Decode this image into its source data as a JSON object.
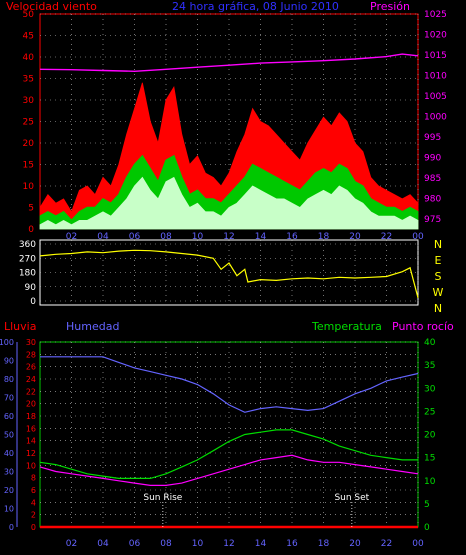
{
  "header": {
    "left_label": "Velocidad viento",
    "center_label": "24 hora gráfica, 08 Junio 2010",
    "right_label": "Presión"
  },
  "bottom_header": {
    "lluvia": "Lluvia",
    "humedad": "Humedad",
    "temperatura": "Temperatura",
    "punto_rocio": "Punto rocío"
  },
  "colors": {
    "background": "#000000",
    "wind_gust": "#ff0000",
    "wind_avg": "#00c800",
    "wind_min": "#c8ffc8",
    "pressure": "#ff00ff",
    "direction": "#ffff00",
    "humidity": "#6464ff",
    "temperature": "#00dc00",
    "dewpoint": "#ff00ff",
    "rain": "#ff0000",
    "axis_left": "#ff0000",
    "axis_right": "#ff00ff",
    "grid": "#c0c0c0",
    "ticks_x": "#6464ff"
  },
  "x_tick_labels": [
    "02",
    "04",
    "06",
    "08",
    "10",
    "12",
    "14",
    "16",
    "18",
    "20",
    "22",
    "00"
  ],
  "chart_data": [
    {
      "type": "line",
      "name": "wind_pressure",
      "ylim_left": [
        0,
        50
      ],
      "left_ticks": [
        "0",
        "5",
        "10",
        "15",
        "20",
        "25",
        "30",
        "35",
        "40",
        "45",
        "50"
      ],
      "ylim_right": [
        972.5,
        1025
      ],
      "right_ticks": [
        "975",
        "980",
        "985",
        "990",
        "995",
        "1000",
        "1005",
        "1010",
        "1015",
        "1020",
        "1025"
      ],
      "series": [
        {
          "name": "",
          "key": "gust",
          "x": [
            0,
            0.5,
            1,
            1.5,
            2,
            2.5,
            3,
            3.5,
            4,
            4.5,
            5,
            5.5,
            6,
            6.5,
            7,
            7.5,
            8,
            8.5,
            9,
            9.5,
            10,
            10.5,
            11,
            11.5,
            12,
            12.5,
            13,
            13.5,
            14,
            14.5,
            15,
            15.5,
            16,
            16.5,
            17,
            17.5,
            18,
            18.5,
            19,
            19.5,
            20,
            20.5,
            21,
            21.5,
            22,
            22.5,
            23,
            23.5,
            24
          ],
          "values": [
            5,
            8,
            6,
            7,
            4,
            9,
            10,
            8,
            12,
            10,
            15,
            22,
            28,
            34,
            25,
            20,
            30,
            33,
            22,
            15,
            17,
            13,
            12,
            10,
            13,
            18,
            22,
            28,
            25,
            24,
            22,
            20,
            18,
            16,
            20,
            23,
            26,
            24,
            27,
            25,
            20,
            18,
            12,
            10,
            9,
            8,
            7,
            8,
            6
          ]
        },
        {
          "name": "",
          "key": "avg",
          "x": [
            0,
            0.5,
            1,
            1.5,
            2,
            2.5,
            3,
            3.5,
            4,
            4.5,
            5,
            5.5,
            6,
            6.5,
            7,
            7.5,
            8,
            8.5,
            9,
            9.5,
            10,
            10.5,
            11,
            11.5,
            12,
            12.5,
            13,
            13.5,
            14,
            14.5,
            15,
            15.5,
            16,
            16.5,
            17,
            17.5,
            18,
            18.5,
            19,
            19.5,
            20,
            20.5,
            21,
            21.5,
            22,
            22.5,
            23,
            23.5,
            24
          ],
          "values": [
            3,
            4,
            3,
            4,
            2,
            4,
            5,
            5,
            7,
            6,
            8,
            12,
            15,
            17,
            14,
            11,
            16,
            17,
            12,
            8,
            9,
            7,
            7,
            6,
            8,
            10,
            12,
            15,
            14,
            13,
            12,
            11,
            10,
            9,
            11,
            13,
            14,
            13,
            15,
            14,
            11,
            10,
            7,
            6,
            5,
            5,
            4,
            5,
            4
          ]
        },
        {
          "name": "",
          "key": "min",
          "x": [
            0,
            0.5,
            1,
            1.5,
            2,
            2.5,
            3,
            3.5,
            4,
            4.5,
            5,
            5.5,
            6,
            6.5,
            7,
            7.5,
            8,
            8.5,
            9,
            9.5,
            10,
            10.5,
            11,
            11.5,
            12,
            12.5,
            13,
            13.5,
            14,
            14.5,
            15,
            15.5,
            16,
            16.5,
            17,
            17.5,
            18,
            18.5,
            19,
            19.5,
            20,
            20.5,
            21,
            21.5,
            22,
            22.5,
            23,
            23.5,
            24
          ],
          "values": [
            1,
            2,
            1,
            2,
            1,
            2,
            2,
            3,
            4,
            3,
            5,
            7,
            10,
            12,
            9,
            7,
            11,
            12,
            8,
            5,
            6,
            4,
            4,
            3,
            5,
            6,
            8,
            10,
            9,
            8,
            7,
            7,
            6,
            5,
            7,
            8,
            9,
            8,
            10,
            9,
            7,
            6,
            4,
            3,
            3,
            3,
            2,
            3,
            2
          ]
        },
        {
          "name": "",
          "key": "pressure",
          "axis": "right",
          "x": [
            0,
            2,
            4,
            6,
            8,
            10,
            12,
            14,
            16,
            18,
            20,
            22,
            23,
            24
          ],
          "values": [
            1011.5,
            1011.4,
            1011.2,
            1011.0,
            1011.5,
            1012.0,
            1012.5,
            1013.0,
            1013.3,
            1013.6,
            1014.0,
            1014.6,
            1015.2,
            1014.8
          ]
        }
      ]
    },
    {
      "type": "line",
      "name": "wind_direction",
      "ylim": [
        0,
        360
      ],
      "left_ticks": [
        "0",
        "90",
        "180",
        "270",
        "360"
      ],
      "right_labels": [
        "N",
        "W",
        "S",
        "E",
        "N"
      ],
      "series": [
        {
          "name": "",
          "key": "direction",
          "x": [
            0,
            0.5,
            1,
            2,
            3,
            4,
            5,
            6,
            7,
            8,
            9,
            10,
            11,
            11.5,
            12,
            12.5,
            13,
            13.2,
            14,
            15,
            16,
            17,
            18,
            19,
            20,
            21,
            22,
            23,
            23.5,
            24
          ],
          "values": [
            285,
            290,
            295,
            300,
            310,
            305,
            315,
            320,
            318,
            310,
            300,
            290,
            270,
            200,
            240,
            160,
            200,
            120,
            135,
            130,
            140,
            145,
            140,
            150,
            145,
            150,
            155,
            185,
            210,
            20
          ]
        }
      ]
    },
    {
      "type": "line",
      "name": "humidity_temperature",
      "ylim_rain": [
        0,
        30
      ],
      "rain_ticks": [
        "0",
        "2",
        "4",
        "6",
        "8",
        "10",
        "12",
        "14",
        "16",
        "18",
        "20",
        "22",
        "24",
        "26",
        "28",
        "30"
      ],
      "ylim_humidity": [
        0,
        100
      ],
      "humidity_ticks": [
        "0",
        "10",
        "20",
        "30",
        "40",
        "50",
        "60",
        "70",
        "80",
        "90",
        "100"
      ],
      "ylim_temp": [
        0,
        40
      ],
      "temp_ticks": [
        "0",
        "5",
        "10",
        "15",
        "20",
        "25",
        "30",
        "35",
        "40"
      ],
      "sun_rise_label": "Sun Rise",
      "sun_set_label": "Sun Set",
      "sun_rise_x": 7.8,
      "sun_set_x": 19.8,
      "series": [
        {
          "name": "",
          "key": "humidity",
          "x": [
            0,
            1,
            2,
            3,
            4,
            5,
            6,
            7,
            8,
            9,
            10,
            11,
            12,
            13,
            14,
            15,
            16,
            17,
            18,
            19,
            20,
            21,
            22,
            23,
            24
          ],
          "values": [
            92,
            92,
            92,
            92,
            92,
            89,
            86,
            84,
            82,
            80,
            77,
            72,
            66,
            62,
            64,
            65,
            64,
            63,
            64,
            68,
            72,
            75,
            79,
            81,
            83
          ]
        },
        {
          "name": "",
          "key": "temperature",
          "x": [
            0,
            1,
            2,
            3,
            4,
            5,
            6,
            7,
            8,
            9,
            10,
            11,
            12,
            13,
            14,
            15,
            16,
            17,
            18,
            19,
            20,
            21,
            22,
            23,
            24
          ],
          "values": [
            14,
            13.5,
            12.5,
            11.5,
            11,
            10.5,
            10.5,
            10.5,
            11.5,
            13,
            14.5,
            16.5,
            18.5,
            20,
            20.5,
            21,
            21,
            20,
            19,
            17.5,
            16.5,
            15.5,
            15,
            14.5,
            14.5
          ]
        },
        {
          "name": "",
          "key": "dewpoint",
          "x": [
            0,
            1,
            2,
            3,
            4,
            5,
            6,
            7,
            8,
            9,
            10,
            11,
            12,
            13,
            14,
            15,
            16,
            17,
            18,
            19,
            20,
            21,
            22,
            23,
            24
          ],
          "values": [
            13,
            12,
            11.5,
            11,
            10.5,
            10,
            9.5,
            9,
            9,
            9.5,
            10.5,
            11.5,
            12.5,
            13.5,
            14.5,
            15,
            15.5,
            14.5,
            14,
            14,
            13.5,
            13,
            12.5,
            12,
            11.5
          ]
        },
        {
          "name": "",
          "key": "rain",
          "axis": "rain",
          "x": [
            0,
            24
          ],
          "values": [
            0,
            0
          ]
        }
      ]
    }
  ]
}
